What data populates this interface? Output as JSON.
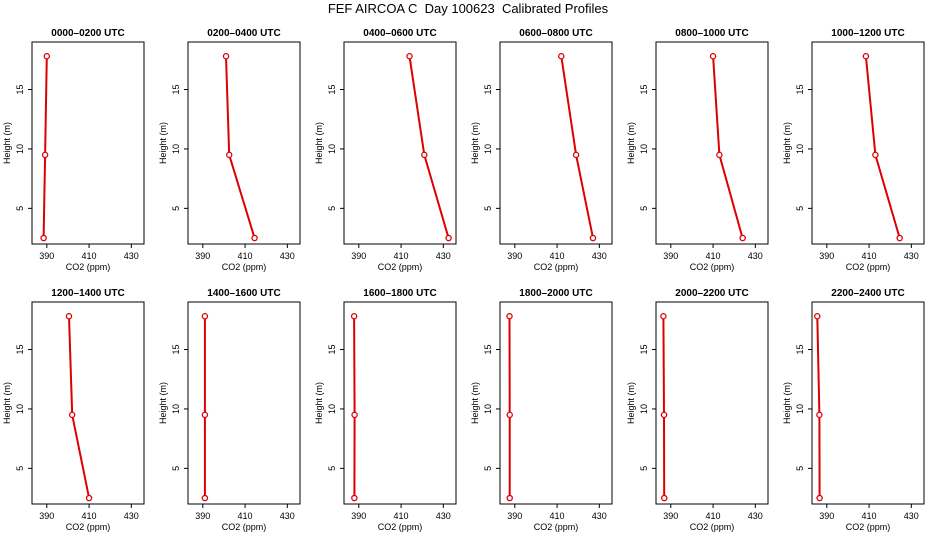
{
  "title": "FEF AIRCOA C  Day 100623  Calibrated Profiles",
  "colors": {
    "line": "#dd0000",
    "axis": "#000000",
    "background": "#ffffff"
  },
  "chart_data": [
    {
      "type": "line",
      "title": "0000–0200 UTC",
      "xlabel": "CO2 (ppm)",
      "ylabel": "Height (m)",
      "xlim": [
        383,
        436
      ],
      "ylim": [
        2,
        19
      ],
      "xticks": [
        "390",
        "410",
        "430"
      ],
      "yticks": [
        "5",
        "10",
        "15"
      ],
      "x": [
        388.5,
        389.2,
        390.0
      ],
      "y": [
        2.5,
        9.5,
        17.8
      ]
    },
    {
      "type": "line",
      "title": "0200–0400 UTC",
      "xlabel": "CO2 (ppm)",
      "ylabel": "Height (m)",
      "xlim": [
        383,
        436
      ],
      "ylim": [
        2,
        19
      ],
      "xticks": [
        "390",
        "410",
        "430"
      ],
      "yticks": [
        "5",
        "10",
        "15"
      ],
      "x": [
        401.0,
        402.5,
        414.5
      ],
      "y": [
        17.8,
        9.5,
        2.5
      ]
    },
    {
      "type": "line",
      "title": "0400–0600 UTC",
      "xlabel": "CO2 (ppm)",
      "ylabel": "Height (m)",
      "xlim": [
        383,
        436
      ],
      "ylim": [
        2,
        19
      ],
      "xticks": [
        "390",
        "410",
        "430"
      ],
      "yticks": [
        "5",
        "10",
        "15"
      ],
      "x": [
        414.0,
        421.0,
        432.5
      ],
      "y": [
        17.8,
        9.5,
        2.5
      ]
    },
    {
      "type": "line",
      "title": "0600–0800 UTC",
      "xlabel": "CO2 (ppm)",
      "ylabel": "Height (m)",
      "xlim": [
        383,
        436
      ],
      "ylim": [
        2,
        19
      ],
      "xticks": [
        "390",
        "410",
        "430"
      ],
      "yticks": [
        "5",
        "10",
        "15"
      ],
      "x": [
        412.0,
        419.0,
        427.0
      ],
      "y": [
        17.8,
        9.5,
        2.5
      ]
    },
    {
      "type": "line",
      "title": "0800–1000 UTC",
      "xlabel": "CO2 (ppm)",
      "ylabel": "Height (m)",
      "xlim": [
        383,
        436
      ],
      "ylim": [
        2,
        19
      ],
      "xticks": [
        "390",
        "410",
        "430"
      ],
      "yticks": [
        "5",
        "10",
        "15"
      ],
      "x": [
        410.0,
        413.0,
        424.0
      ],
      "y": [
        17.8,
        9.5,
        2.5
      ]
    },
    {
      "type": "line",
      "title": "1000–1200 UTC",
      "xlabel": "CO2 (ppm)",
      "ylabel": "Height (m)",
      "xlim": [
        383,
        436
      ],
      "ylim": [
        2,
        19
      ],
      "xticks": [
        "390",
        "410",
        "430"
      ],
      "yticks": [
        "5",
        "10",
        "15"
      ],
      "x": [
        408.5,
        413.0,
        424.5
      ],
      "y": [
        17.8,
        9.5,
        2.5
      ]
    },
    {
      "type": "line",
      "title": "1200–1400 UTC",
      "xlabel": "CO2 (ppm)",
      "ylabel": "Height (m)",
      "xlim": [
        383,
        436
      ],
      "ylim": [
        2,
        19
      ],
      "xticks": [
        "390",
        "410",
        "430"
      ],
      "yticks": [
        "5",
        "10",
        "15"
      ],
      "x": [
        400.5,
        402.0,
        410.0
      ],
      "y": [
        17.8,
        9.5,
        2.5
      ]
    },
    {
      "type": "line",
      "title": "1400–1600 UTC",
      "xlabel": "CO2 (ppm)",
      "ylabel": "Height (m)",
      "xlim": [
        383,
        436
      ],
      "ylim": [
        2,
        19
      ],
      "xticks": [
        "390",
        "410",
        "430"
      ],
      "yticks": [
        "5",
        "10",
        "15"
      ],
      "x": [
        391.0,
        391.0,
        391.0
      ],
      "y": [
        17.8,
        9.5,
        2.5
      ]
    },
    {
      "type": "line",
      "title": "1600–1800 UTC",
      "xlabel": "CO2 (ppm)",
      "ylabel": "Height (m)",
      "xlim": [
        383,
        436
      ],
      "ylim": [
        2,
        19
      ],
      "xticks": [
        "390",
        "410",
        "430"
      ],
      "yticks": [
        "5",
        "10",
        "15"
      ],
      "x": [
        387.8,
        388.0,
        387.9
      ],
      "y": [
        17.8,
        9.5,
        2.5
      ]
    },
    {
      "type": "line",
      "title": "1800–2000 UTC",
      "xlabel": "CO2 (ppm)",
      "ylabel": "Height (m)",
      "xlim": [
        383,
        436
      ],
      "ylim": [
        2,
        19
      ],
      "xticks": [
        "390",
        "410",
        "430"
      ],
      "yticks": [
        "5",
        "10",
        "15"
      ],
      "x": [
        387.5,
        387.6,
        387.6
      ],
      "y": [
        17.8,
        9.5,
        2.5
      ]
    },
    {
      "type": "line",
      "title": "2000–2200 UTC",
      "xlabel": "CO2 (ppm)",
      "ylabel": "Height (m)",
      "xlim": [
        383,
        436
      ],
      "ylim": [
        2,
        19
      ],
      "xticks": [
        "390",
        "410",
        "430"
      ],
      "yticks": [
        "5",
        "10",
        "15"
      ],
      "x": [
        386.5,
        386.8,
        386.9
      ],
      "y": [
        17.8,
        9.5,
        2.5
      ]
    },
    {
      "type": "line",
      "title": "2200–2400 UTC",
      "xlabel": "CO2 (ppm)",
      "ylabel": "Height (m)",
      "xlim": [
        383,
        436
      ],
      "ylim": [
        2,
        19
      ],
      "xticks": [
        "390",
        "410",
        "430"
      ],
      "yticks": [
        "5",
        "10",
        "15"
      ],
      "x": [
        385.5,
        386.5,
        386.6
      ],
      "y": [
        17.8,
        9.5,
        2.5
      ]
    }
  ]
}
